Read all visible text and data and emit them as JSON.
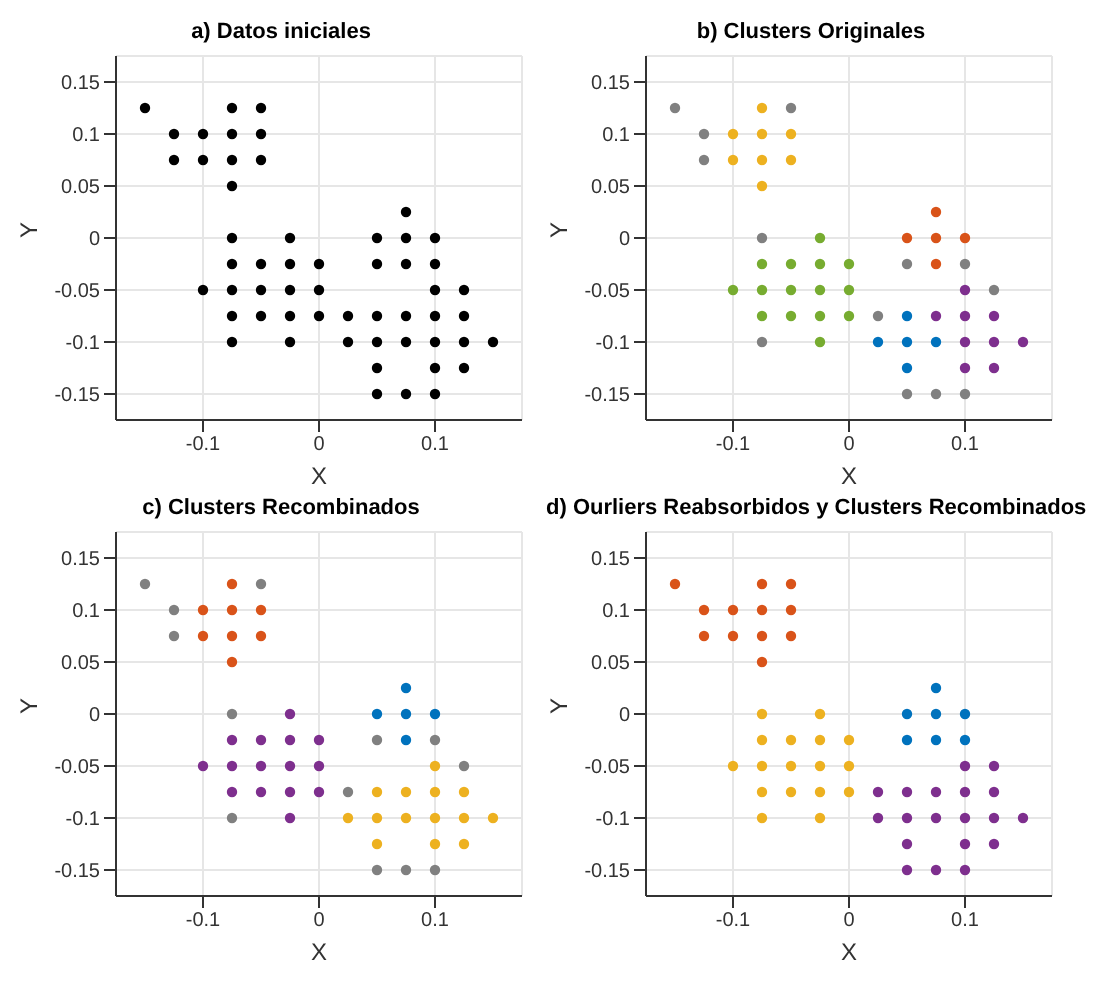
{
  "chart_data": [
    {
      "type": "scatter",
      "title": "a) Datos iniciales",
      "xlabel": "X",
      "ylabel": "Y",
      "xlim": [
        -0.175,
        0.175
      ],
      "ylim": [
        -0.175,
        0.175
      ],
      "xticks": [
        -0.1,
        0,
        0.1
      ],
      "yticks": [
        -0.15,
        -0.1,
        -0.05,
        0,
        0.05,
        0.1,
        0.15
      ],
      "grid": true,
      "marker": "circle",
      "series": [
        {
          "color": "#000000",
          "x": [
            -0.15,
            -0.075,
            -0.05,
            -0.125,
            -0.1,
            -0.075,
            -0.05,
            -0.125,
            -0.1,
            -0.075,
            -0.05,
            -0.075,
            0.075,
            -0.075,
            -0.025,
            0.05,
            0.075,
            0.1,
            -0.075,
            -0.05,
            -0.025,
            0,
            0.05,
            0.075,
            0.1,
            -0.1,
            -0.075,
            -0.05,
            -0.025,
            0,
            0.1,
            0.125,
            -0.075,
            -0.05,
            -0.025,
            0,
            0.025,
            0.05,
            0.075,
            0.1,
            0.125,
            -0.075,
            -0.025,
            0.025,
            0.05,
            0.075,
            0.1,
            0.125,
            0.15,
            0.05,
            0.1,
            0.125,
            0.05,
            0.075,
            0.1
          ],
          "values": [
            0.125,
            0.125,
            0.125,
            0.1,
            0.1,
            0.1,
            0.1,
            0.075,
            0.075,
            0.075,
            0.075,
            0.05,
            0.025,
            0,
            0,
            0,
            0,
            0,
            -0.025,
            -0.025,
            -0.025,
            -0.025,
            -0.025,
            -0.025,
            -0.025,
            -0.05,
            -0.05,
            -0.05,
            -0.05,
            -0.05,
            -0.05,
            -0.05,
            -0.075,
            -0.075,
            -0.075,
            -0.075,
            -0.075,
            -0.075,
            -0.075,
            -0.075,
            -0.075,
            -0.1,
            -0.1,
            -0.1,
            -0.1,
            -0.1,
            -0.1,
            -0.1,
            -0.1,
            -0.125,
            -0.125,
            -0.125,
            -0.15,
            -0.15,
            -0.15
          ]
        }
      ]
    },
    {
      "type": "scatter",
      "title": "b) Clusters Originales",
      "xlabel": "X",
      "ylabel": "Y",
      "xlim": [
        -0.175,
        0.175
      ],
      "ylim": [
        -0.175,
        0.175
      ],
      "xticks": [
        -0.1,
        0,
        0.1
      ],
      "yticks": [
        -0.15,
        -0.1,
        -0.05,
        0,
        0.05,
        0.1,
        0.15
      ],
      "grid": true,
      "marker": "circle",
      "series": [
        {
          "color": "#808080",
          "x": [
            -0.15,
            -0.05,
            -0.125,
            -0.125,
            -0.075,
            -0.075,
            0.05,
            0.1,
            0.125,
            0.025,
            0.05,
            0.075,
            0.1
          ],
          "values": [
            0.125,
            0.125,
            0.1,
            0.075,
            0,
            -0.1,
            -0.025,
            -0.025,
            -0.05,
            -0.075,
            -0.15,
            -0.15,
            -0.15
          ]
        },
        {
          "color": "#edb120",
          "x": [
            -0.075,
            -0.1,
            -0.075,
            -0.05,
            -0.1,
            -0.075,
            -0.05,
            -0.075
          ],
          "values": [
            0.125,
            0.1,
            0.1,
            0.1,
            0.075,
            0.075,
            0.075,
            0.05
          ]
        },
        {
          "color": "#77ac30",
          "x": [
            -0.025,
            -0.075,
            -0.05,
            -0.025,
            0,
            -0.1,
            -0.075,
            -0.05,
            -0.025,
            0,
            -0.075,
            -0.05,
            -0.025,
            0,
            -0.025
          ],
          "values": [
            0,
            -0.025,
            -0.025,
            -0.025,
            -0.025,
            -0.05,
            -0.05,
            -0.05,
            -0.05,
            -0.05,
            -0.075,
            -0.075,
            -0.075,
            -0.075,
            -0.1
          ]
        },
        {
          "color": "#d95319",
          "x": [
            0.075,
            0.05,
            0.075,
            0.1,
            0.075
          ],
          "values": [
            0.025,
            0,
            0,
            0,
            -0.025
          ]
        },
        {
          "color": "#0072bd",
          "x": [
            0.05,
            0.025,
            0.05,
            0.075,
            0.05
          ],
          "values": [
            -0.075,
            -0.1,
            -0.1,
            -0.1,
            -0.125
          ]
        },
        {
          "color": "#7e2f8e",
          "x": [
            0.1,
            0.075,
            0.1,
            0.125,
            0.1,
            0.125,
            0.15,
            0.1,
            0.125
          ],
          "values": [
            -0.05,
            -0.075,
            -0.075,
            -0.075,
            -0.1,
            -0.1,
            -0.1,
            -0.125,
            -0.125
          ]
        }
      ]
    },
    {
      "type": "scatter",
      "title": "c) Clusters Recombinados",
      "xlabel": "X",
      "ylabel": "Y",
      "xlim": [
        -0.175,
        0.175
      ],
      "ylim": [
        -0.175,
        0.175
      ],
      "xticks": [
        -0.1,
        0,
        0.1
      ],
      "yticks": [
        -0.15,
        -0.1,
        -0.05,
        0,
        0.05,
        0.1,
        0.15
      ],
      "grid": true,
      "marker": "circle",
      "series": [
        {
          "color": "#808080",
          "x": [
            -0.15,
            -0.05,
            -0.125,
            -0.125,
            -0.075,
            -0.075,
            0.05,
            0.1,
            0.125,
            0.025,
            0.05,
            0.075,
            0.1
          ],
          "values": [
            0.125,
            0.125,
            0.1,
            0.075,
            0,
            -0.1,
            -0.025,
            -0.025,
            -0.05,
            -0.075,
            -0.15,
            -0.15,
            -0.15
          ]
        },
        {
          "color": "#d95319",
          "x": [
            -0.075,
            -0.1,
            -0.075,
            -0.05,
            -0.1,
            -0.075,
            -0.05,
            -0.075
          ],
          "values": [
            0.125,
            0.1,
            0.1,
            0.1,
            0.075,
            0.075,
            0.075,
            0.05
          ]
        },
        {
          "color": "#7e2f8e",
          "x": [
            -0.025,
            -0.075,
            -0.05,
            -0.025,
            0,
            -0.1,
            -0.075,
            -0.05,
            -0.025,
            0,
            -0.075,
            -0.05,
            -0.025,
            0,
            -0.025
          ],
          "values": [
            0,
            -0.025,
            -0.025,
            -0.025,
            -0.025,
            -0.05,
            -0.05,
            -0.05,
            -0.05,
            -0.05,
            -0.075,
            -0.075,
            -0.075,
            -0.075,
            -0.1
          ]
        },
        {
          "color": "#0072bd",
          "x": [
            0.075,
            0.05,
            0.075,
            0.1,
            0.075
          ],
          "values": [
            0.025,
            0,
            0,
            0,
            -0.025
          ]
        },
        {
          "color": "#edb120",
          "x": [
            0.1,
            0.05,
            0.075,
            0.1,
            0.125,
            0.025,
            0.05,
            0.075,
            0.1,
            0.125,
            0.15,
            0.05,
            0.1,
            0.125
          ],
          "values": [
            -0.05,
            -0.075,
            -0.075,
            -0.075,
            -0.075,
            -0.1,
            -0.1,
            -0.1,
            -0.1,
            -0.1,
            -0.1,
            -0.125,
            -0.125,
            -0.125
          ]
        }
      ]
    },
    {
      "type": "scatter",
      "title": "d) Ourliers Reabsorbidos y Clusters Recombinados",
      "xlabel": "X",
      "ylabel": "Y",
      "xlim": [
        -0.175,
        0.175
      ],
      "ylim": [
        -0.175,
        0.175
      ],
      "xticks": [
        -0.1,
        0,
        0.1
      ],
      "yticks": [
        -0.15,
        -0.1,
        -0.05,
        0,
        0.05,
        0.1,
        0.15
      ],
      "grid": true,
      "marker": "circle",
      "series": [
        {
          "color": "#d95319",
          "x": [
            -0.15,
            -0.075,
            -0.05,
            -0.125,
            -0.1,
            -0.075,
            -0.05,
            -0.125,
            -0.1,
            -0.075,
            -0.05,
            -0.075
          ],
          "values": [
            0.125,
            0.125,
            0.125,
            0.1,
            0.1,
            0.1,
            0.1,
            0.075,
            0.075,
            0.075,
            0.075,
            0.05
          ]
        },
        {
          "color": "#edb120",
          "x": [
            -0.075,
            -0.025,
            -0.075,
            -0.05,
            -0.025,
            0,
            -0.1,
            -0.075,
            -0.05,
            -0.025,
            0,
            -0.075,
            -0.05,
            -0.025,
            0,
            -0.075,
            -0.025
          ],
          "values": [
            0,
            0,
            -0.025,
            -0.025,
            -0.025,
            -0.025,
            -0.05,
            -0.05,
            -0.05,
            -0.05,
            -0.05,
            -0.075,
            -0.075,
            -0.075,
            -0.075,
            -0.1,
            -0.1
          ]
        },
        {
          "color": "#0072bd",
          "x": [
            0.075,
            0.05,
            0.075,
            0.1,
            0.05,
            0.075,
            0.1
          ],
          "values": [
            0.025,
            0,
            0,
            0,
            -0.025,
            -0.025,
            -0.025
          ]
        },
        {
          "color": "#7e2f8e",
          "x": [
            0.1,
            0.125,
            0.025,
            0.05,
            0.075,
            0.1,
            0.125,
            0.025,
            0.05,
            0.075,
            0.1,
            0.125,
            0.15,
            0.05,
            0.1,
            0.125,
            0.05,
            0.075,
            0.1
          ],
          "values": [
            -0.05,
            -0.05,
            -0.075,
            -0.075,
            -0.075,
            -0.075,
            -0.075,
            -0.1,
            -0.1,
            -0.1,
            -0.1,
            -0.1,
            -0.1,
            -0.125,
            -0.125,
            -0.125,
            -0.15,
            -0.15,
            -0.15
          ]
        }
      ]
    }
  ]
}
